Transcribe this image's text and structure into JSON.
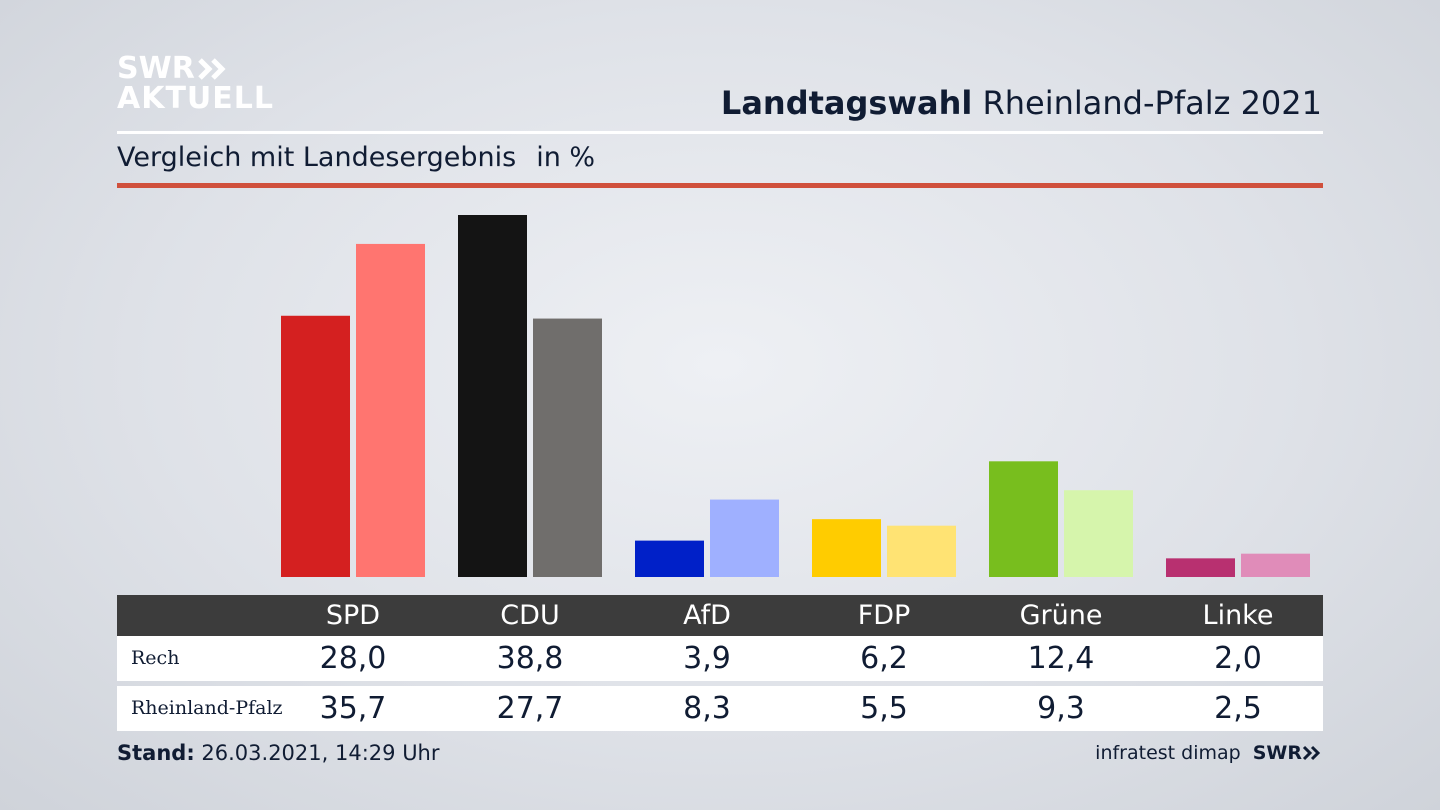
{
  "logo": {
    "line1": "SWR",
    "line2": "AKTUELL"
  },
  "header": {
    "title_bold": "Landtagswahl",
    "title_rest": "Rheinland-Pfalz 2021"
  },
  "subtitle": {
    "text": "Vergleich mit Landesergebnis",
    "unit": "in %"
  },
  "chart_data": {
    "type": "bar",
    "title": "Landtagswahl Rheinland-Pfalz 2021",
    "subtitle": "Vergleich mit Landesergebnis in %",
    "categories": [
      "SPD",
      "CDU",
      "AfD",
      "FDP",
      "Grüne",
      "Linke"
    ],
    "series": [
      {
        "name": "Rech",
        "values": [
          28.0,
          38.8,
          3.9,
          6.2,
          12.4,
          2.0
        ],
        "labels": [
          "28,0",
          "38,8",
          "3,9",
          "6,2",
          "12,4",
          "2,0"
        ]
      },
      {
        "name": "Rheinland-Pfalz",
        "values": [
          35.7,
          27.7,
          8.3,
          5.5,
          9.3,
          2.5
        ],
        "labels": [
          "35,7",
          "27,7",
          "8,3",
          "5,5",
          "9,3",
          "2,5"
        ]
      }
    ],
    "colors": {
      "series1": [
        "#d42020",
        "#141414",
        "#0020c8",
        "#ffcc00",
        "#78be1e",
        "#b83070"
      ],
      "series2": [
        "#ff7570",
        "#706e6c",
        "#9fb0ff",
        "#ffe373",
        "#d6f5ac",
        "#e08cb9"
      ]
    },
    "ylim": [
      0,
      40
    ],
    "grid": false,
    "legend": "none"
  },
  "footer": {
    "stand_label": "Stand:",
    "stand_value": "26.03.2021, 14:29 Uhr",
    "source": "infratest dimap",
    "brand": "SWR"
  }
}
